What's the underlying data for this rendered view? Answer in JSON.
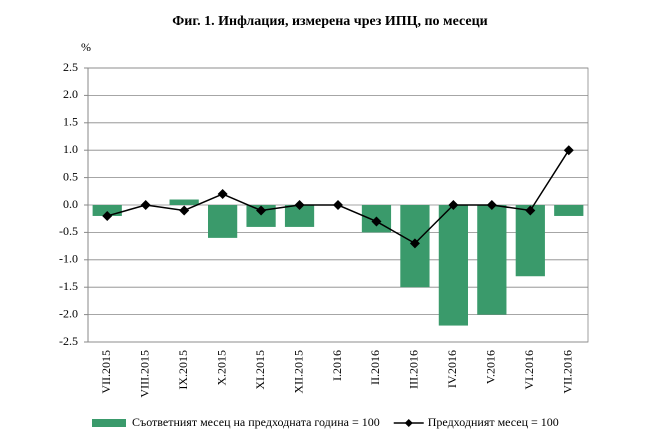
{
  "chart_data": {
    "type": "bar_line",
    "title": "Фиг. 1. Инфлация, измерена чрез ИПЦ, по месеци",
    "y_unit": "%",
    "categories": [
      "VII.2015",
      "VIII.2015",
      "IX.2015",
      "X.2015",
      "XI.2015",
      "XII.2015",
      "I.2016",
      "II.2016",
      "III.2016",
      "IV.2016",
      "V.2016",
      "VI.2016",
      "VII.2016"
    ],
    "series": [
      {
        "name": "Съответният месец на предходната година = 100",
        "type": "bar",
        "color": "#3a9a6b",
        "values": [
          -0.2,
          0.0,
          0.1,
          -0.6,
          -0.4,
          -0.4,
          0.0,
          -0.5,
          -1.5,
          -2.2,
          -2.0,
          -1.3,
          -0.2
        ]
      },
      {
        "name": "Предходният месец = 100",
        "type": "line",
        "color": "#000000",
        "values": [
          -0.2,
          0.0,
          -0.1,
          0.2,
          -0.1,
          0.0,
          0.0,
          -0.3,
          -0.7,
          0.0,
          0.0,
          -0.1,
          1.0
        ]
      }
    ],
    "ylim": [
      -2.5,
      2.5
    ],
    "yticks": [
      2.5,
      {
        "value": 2,
        "label": "2.0"
      },
      1.5,
      {
        "value": 1,
        "label": "1.0"
      },
      0.5,
      {
        "value": 0,
        "label": "0.0"
      },
      -0.5,
      {
        "value": -1,
        "label": "-1.0"
      },
      -1.5,
      {
        "value": -2,
        "label": "-2.0"
      },
      -2.5
    ],
    "grid": true,
    "legend": "bottom"
  }
}
